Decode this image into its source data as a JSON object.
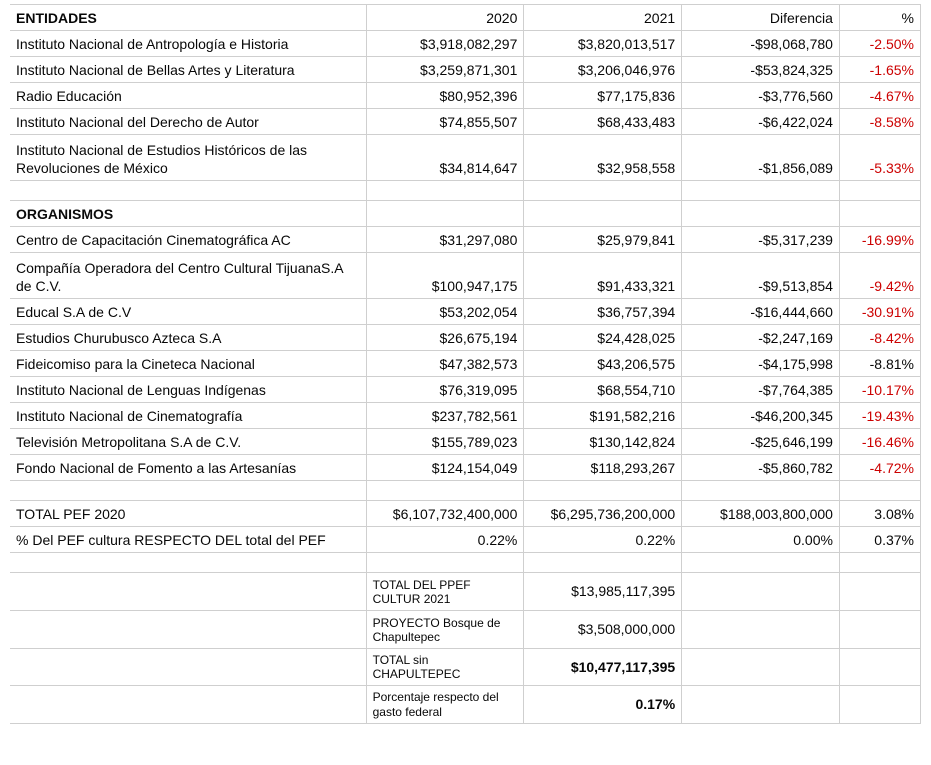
{
  "columns": {
    "name_header": "ENTIDADES",
    "y2020": "2020",
    "y2021": "2021",
    "diff": "Diferencia",
    "pct": "%"
  },
  "entidades": [
    {
      "name": "Instituto Nacional de Antropología e Historia",
      "y2020": "$3,918,082,297",
      "y2021": "$3,820,013,517",
      "diff": "-$98,068,780",
      "pct": "-2.50%",
      "pct_neg": true
    },
    {
      "name": "Instituto Nacional de Bellas Artes y Literatura",
      "y2020": "$3,259,871,301",
      "y2021": "$3,206,046,976",
      "diff": "-$53,824,325",
      "pct": "-1.65%",
      "pct_neg": true
    },
    {
      "name": "Radio Educación",
      "y2020": "$80,952,396",
      "y2021": "$77,175,836",
      "diff": "-$3,776,560",
      "pct": "-4.67%",
      "pct_neg": true
    },
    {
      "name": "Instituto Nacional del Derecho de Autor",
      "y2020": "$74,855,507",
      "y2021": "$68,433,483",
      "diff": "-$6,422,024",
      "pct": "-8.58%",
      "pct_neg": true
    },
    {
      "name": "Instituto Nacional de Estudios Históricos de las Revoluciones de México",
      "y2020": "$34,814,647",
      "y2021": "$32,958,558",
      "diff": "-$1,856,089",
      "pct": "-5.33%",
      "pct_neg": true,
      "two_line": true
    }
  ],
  "section2_header": "ORGANISMOS",
  "organismos": [
    {
      "name": "Centro de Capacitación Cinematográfica AC",
      "y2020": "$31,297,080",
      "y2021": "$25,979,841",
      "diff": "-$5,317,239",
      "pct": "-16.99%",
      "pct_neg": true
    },
    {
      "name": "Compañía Operadora del Centro Cultural TijuanaS.A de C.V.",
      "y2020": "$100,947,175",
      "y2021": "$91,433,321",
      "diff": "-$9,513,854",
      "pct": "-9.42%",
      "pct_neg": true,
      "two_line": true
    },
    {
      "name": "Educal S.A de C.V",
      "y2020": "$53,202,054",
      "y2021": "$36,757,394",
      "diff": "-$16,444,660",
      "pct": "-30.91%",
      "pct_neg": true
    },
    {
      "name": "Estudios Churubusco Azteca S.A",
      "y2020": "$26,675,194",
      "y2021": "$24,428,025",
      "diff": "-$2,247,169",
      "pct": "-8.42%",
      "pct_neg": true
    },
    {
      "name": "Fideicomiso para la Cineteca Nacional",
      "y2020": "$47,382,573",
      "y2021": "$43,206,575",
      "diff": "-$4,175,998",
      "pct": "-8.81%",
      "pct_neg": false
    },
    {
      "name": "Instituto Nacional de Lenguas Indígenas",
      "y2020": "$76,319,095",
      "y2021": "$68,554,710",
      "diff": "-$7,764,385",
      "pct": "-10.17%",
      "pct_neg": true
    },
    {
      "name": "Instituto Nacional de Cinematografía",
      "y2020": "$237,782,561",
      "y2021": "$191,582,216",
      "diff": "-$46,200,345",
      "pct": "-19.43%",
      "pct_neg": true
    },
    {
      "name": "Televisión Metropolitana S.A de C.V.",
      "y2020": "$155,789,023",
      "y2021": "$130,142,824",
      "diff": "-$25,646,199",
      "pct": "-16.46%",
      "pct_neg": true
    },
    {
      "name": "Fondo Nacional de Fomento a las Artesanías",
      "y2020": "$124,154,049",
      "y2021": "$118,293,267",
      "diff": "-$5,860,782",
      "pct": "-4.72%",
      "pct_neg": true
    }
  ],
  "totals": [
    {
      "name": "TOTAL PEF 2020",
      "y2020": "$6,107,732,400,000",
      "y2021": "$6,295,736,200,000",
      "diff": "$188,003,800,000",
      "pct": "3.08%",
      "pct_neg": false
    },
    {
      "name": "% Del PEF cultura RESPECTO DEL total del PEF",
      "y2020": "0.22%",
      "y2021": "0.22%",
      "diff": "0.00%",
      "pct": "0.37%",
      "pct_neg": false
    }
  ],
  "summary": [
    {
      "label": "TOTAL DEL PPEF CULTUR 2021",
      "value": "$13,985,117,395",
      "two_line": true,
      "bold": false
    },
    {
      "label": "PROYECTO Bosque de Chapultepec",
      "value": "$3,508,000,000",
      "two_line": true,
      "bold": false
    },
    {
      "label": "TOTAL sin CHAPULTEPEC",
      "value": "$10,477,117,395",
      "two_line": false,
      "bold": true
    },
    {
      "label": "Porcentaje respecto del gasto federal",
      "value": "0.17%",
      "two_line": true,
      "bold": true
    }
  ]
}
